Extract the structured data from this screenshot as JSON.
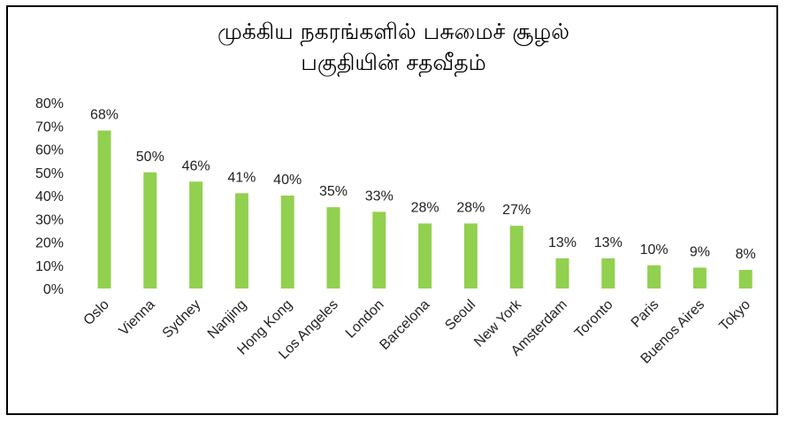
{
  "chart_data": {
    "type": "bar",
    "title_lines": [
      "முக்கிய நகரங்களில் பசுமைச் சூழல்",
      "பகுதியின் சதவீதம்"
    ],
    "categories": [
      "Oslo",
      "Vienna",
      "Sydney",
      "Nanjing",
      "Hong Kong",
      "Los Angeles",
      "London",
      "Barcelona",
      "Seoul",
      "New York",
      "Amsterdam",
      "Toronto",
      "Paris",
      "Buenos Aires",
      "Tokyo"
    ],
    "values": [
      68,
      50,
      46,
      41,
      40,
      35,
      33,
      28,
      28,
      27,
      13,
      13,
      10,
      9,
      8
    ],
    "data_labels": [
      "68%",
      "50%",
      "46%",
      "41%",
      "40%",
      "35%",
      "33%",
      "28%",
      "28%",
      "27%",
      "13%",
      "13%",
      "10%",
      "9%",
      "8%"
    ],
    "y_ticks": [
      "0%",
      "10%",
      "20%",
      "30%",
      "40%",
      "50%",
      "60%",
      "70%",
      "80%"
    ],
    "ylim": [
      0,
      80
    ],
    "grid": false,
    "bar_color": "#92d050"
  }
}
